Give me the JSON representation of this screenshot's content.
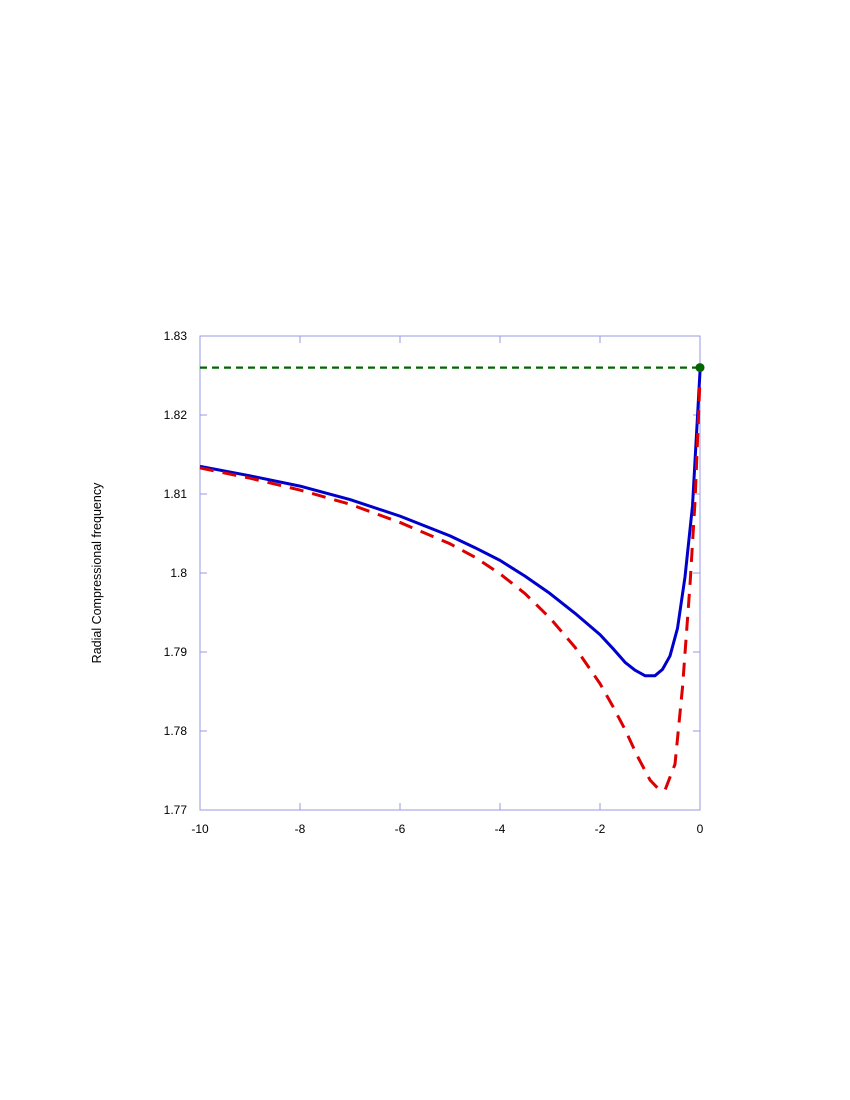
{
  "chart_data": {
    "type": "line",
    "title": "",
    "xlabel": "",
    "ylabel": "Radial Compressional frequency",
    "xlim": [
      -10,
      0
    ],
    "ylim": [
      1.77,
      1.83
    ],
    "xticks": [
      "-10",
      "-8",
      "-6",
      "-4",
      "-2",
      "0"
    ],
    "xtick_values": [
      -10,
      -8,
      -6,
      -4,
      -2,
      0
    ],
    "yticks": [
      "1.77",
      "1.78",
      "1.79",
      "1.8",
      "1.81",
      "1.82",
      "1.83"
    ],
    "ytick_values": [
      1.77,
      1.78,
      1.79,
      1.8,
      1.81,
      1.82,
      1.83
    ],
    "grid": false,
    "frame_color": "#9a9ae6",
    "series": [
      {
        "style": "solid",
        "color": "#0000cc",
        "x": [
          -10,
          -9,
          -8,
          -7,
          -6,
          -5,
          -4.5,
          -4,
          -3.5,
          -3,
          -2.5,
          -2,
          -1.75,
          -1.5,
          -1.3,
          -1.1,
          -0.9,
          -0.75,
          -0.6,
          -0.45,
          -0.3,
          -0.15,
          0
        ],
        "y": [
          1.8135,
          1.8123,
          1.811,
          1.8093,
          1.8072,
          1.8047,
          1.8032,
          1.8016,
          1.7996,
          1.7974,
          1.7949,
          1.7922,
          1.7905,
          1.7887,
          1.7877,
          1.787,
          1.787,
          1.7878,
          1.7895,
          1.793,
          1.7995,
          1.8085,
          1.8255
        ]
      },
      {
        "style": "dashed",
        "color": "#dd0000",
        "x": [
          -10,
          -9,
          -8,
          -7,
          -6,
          -5,
          -4.5,
          -4,
          -3.5,
          -3,
          -2.5,
          -2,
          -1.75,
          -1.5,
          -1.25,
          -1.0,
          -0.85,
          -0.7,
          -0.5,
          -0.35,
          -0.2,
          -0.1,
          0
        ],
        "y": [
          1.8133,
          1.812,
          1.8105,
          1.8087,
          1.8064,
          1.8037,
          1.802,
          1.7999,
          1.7974,
          1.7943,
          1.7906,
          1.786,
          1.7832,
          1.7802,
          1.7768,
          1.7738,
          1.7728,
          1.7725,
          1.7758,
          1.7855,
          1.7985,
          1.809,
          1.8245
        ]
      },
      {
        "style": "dashed",
        "color": "#006600",
        "x": [
          -10,
          0
        ],
        "y": [
          1.826,
          1.826
        ],
        "marker_at_end": true
      }
    ]
  }
}
